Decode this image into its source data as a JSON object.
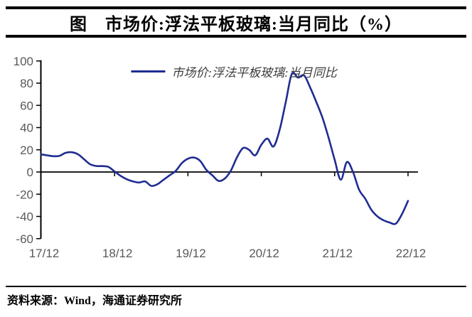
{
  "header": {
    "title": "图　市场价:浮法平板玻璃:当月同比（%）"
  },
  "legend": {
    "label": "市场价:浮法平板玻璃:当月同比"
  },
  "footer": {
    "source": "资料来源：Wind，海通证券研究所"
  },
  "colors": {
    "line": "#1F2C92",
    "axis": "#000000",
    "tick_label": "#595959",
    "legend_text": "#3d3d3d"
  },
  "chart_data": {
    "type": "line",
    "title": "市场价:浮法平板玻璃:当月同比（%）",
    "legend": "市场价:浮法平板玻璃:当月同比",
    "legend_position": "top-center",
    "grid": false,
    "ylim": [
      -60,
      100
    ],
    "y_ticks": [
      100,
      80,
      60,
      40,
      20,
      0,
      -20,
      -40,
      -60
    ],
    "x_tick_labels": [
      "17/12",
      "18/12",
      "19/12",
      "20/12",
      "21/12",
      "22/12"
    ],
    "x_tick_indices": [
      0,
      12,
      24,
      36,
      48,
      60
    ],
    "x": [
      "2017-12",
      "2018-01",
      "2018-02",
      "2018-03",
      "2018-04",
      "2018-05",
      "2018-06",
      "2018-07",
      "2018-08",
      "2018-09",
      "2018-10",
      "2018-11",
      "2018-12",
      "2019-01",
      "2019-02",
      "2019-03",
      "2019-04",
      "2019-05",
      "2019-06",
      "2019-07",
      "2019-08",
      "2019-09",
      "2019-10",
      "2019-11",
      "2019-12",
      "2020-01",
      "2020-02",
      "2020-03",
      "2020-04",
      "2020-05",
      "2020-06",
      "2020-07",
      "2020-08",
      "2020-09",
      "2020-10",
      "2020-11",
      "2020-12",
      "2021-01",
      "2021-02",
      "2021-03",
      "2021-04",
      "2021-05",
      "2021-06",
      "2021-07",
      "2021-08",
      "2021-09",
      "2021-10",
      "2021-11",
      "2021-12",
      "2022-01",
      "2022-02",
      "2022-03",
      "2022-04",
      "2022-05",
      "2022-06",
      "2022-07",
      "2022-08",
      "2022-09",
      "2022-10",
      "2022-11",
      "2022-12"
    ],
    "values": [
      15.8,
      15.0,
      14.2,
      14.6,
      17.3,
      17.8,
      16.0,
      11.5,
      7.0,
      5.4,
      5.3,
      4.6,
      0.5,
      -3.5,
      -6.5,
      -8.5,
      -9.5,
      -8.5,
      -12.5,
      -11.0,
      -7.0,
      -3.0,
      1.0,
      8.0,
      12.0,
      13.0,
      10.0,
      2.0,
      -3.0,
      -8.0,
      -6.0,
      1.0,
      13.0,
      21.5,
      20.0,
      15.0,
      24.5,
      30.0,
      23.0,
      38.0,
      63.0,
      88.5,
      85.0,
      87.0,
      76.0,
      63.0,
      49.0,
      31.0,
      11.0,
      -7.0,
      9.0,
      0.0,
      -16.0,
      -24.0,
      -34.0,
      -40.0,
      -43.5,
      -45.5,
      -46.5,
      -38.0,
      -26.0
    ]
  }
}
